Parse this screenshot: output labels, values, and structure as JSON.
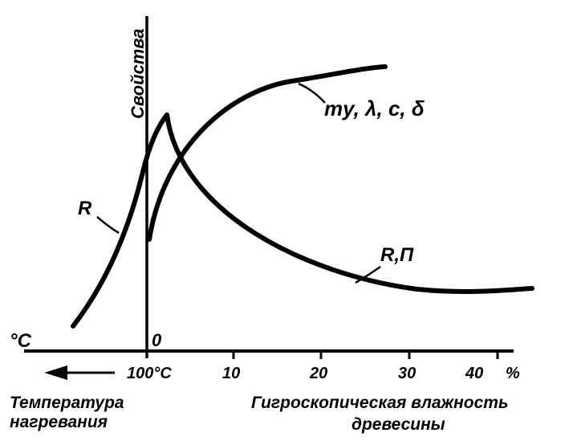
{
  "diagram": {
    "y_axis_label": "Свойства",
    "origin_label": "0",
    "left_unit_label": "°C",
    "temp_tick_label": "100°C",
    "x_ticks": [
      "10",
      "20",
      "30",
      "40"
    ],
    "percent_label": "%",
    "curves": [
      {
        "label": "R"
      },
      {
        "label": "R,П"
      },
      {
        "label": "mу, λ, c, δ"
      }
    ],
    "left_caption": [
      "Температура",
      "нагревания"
    ],
    "right_caption": [
      "Гигроскопическая влажность",
      "древесины"
    ],
    "ink_color": "#000000",
    "background_color": "#ffffff"
  }
}
